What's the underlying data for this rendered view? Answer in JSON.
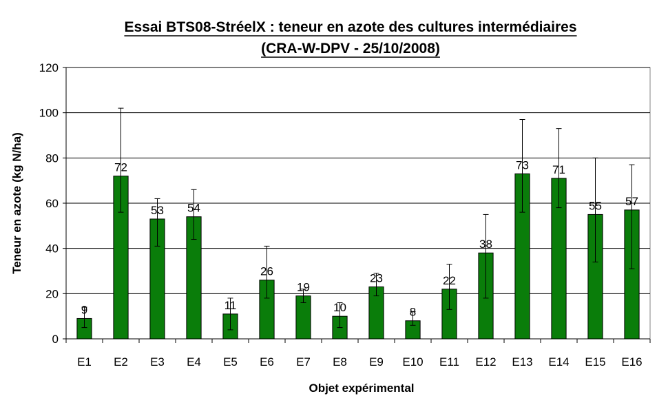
{
  "chart_data": {
    "type": "bar",
    "title": "Essai BTS08-StréelX : teneur en azote des cultures intermédiaires",
    "subtitle": "(CRA-W-DPV - 25/10/2008)",
    "xlabel": "Objet expérimental",
    "ylabel": "Teneur en azote (kg N/ha)",
    "ylim": [
      0,
      120
    ],
    "yticks": [
      0,
      20,
      40,
      60,
      80,
      100,
      120
    ],
    "grid": true,
    "legend": "none",
    "bar_color": "#0a7d0a",
    "categories": [
      "E1",
      "E2",
      "E3",
      "E4",
      "E5",
      "E6",
      "E7",
      "E8",
      "E9",
      "E10",
      "E11",
      "E12",
      "E13",
      "E14",
      "E15",
      "E16"
    ],
    "values": [
      9,
      72,
      53,
      54,
      11,
      26,
      19,
      10,
      23,
      8,
      22,
      38,
      73,
      71,
      55,
      57
    ],
    "error_bars": [
      [
        5,
        14
      ],
      [
        56,
        102
      ],
      [
        41,
        62
      ],
      [
        44,
        66
      ],
      [
        4,
        18
      ],
      [
        18,
        41
      ],
      [
        16,
        22
      ],
      [
        5,
        16
      ],
      [
        19,
        29
      ],
      [
        6,
        12
      ],
      [
        13,
        33
      ],
      [
        18,
        55
      ],
      [
        56,
        97
      ],
      [
        58,
        93
      ],
      [
        34,
        80
      ],
      [
        31,
        77
      ]
    ]
  }
}
